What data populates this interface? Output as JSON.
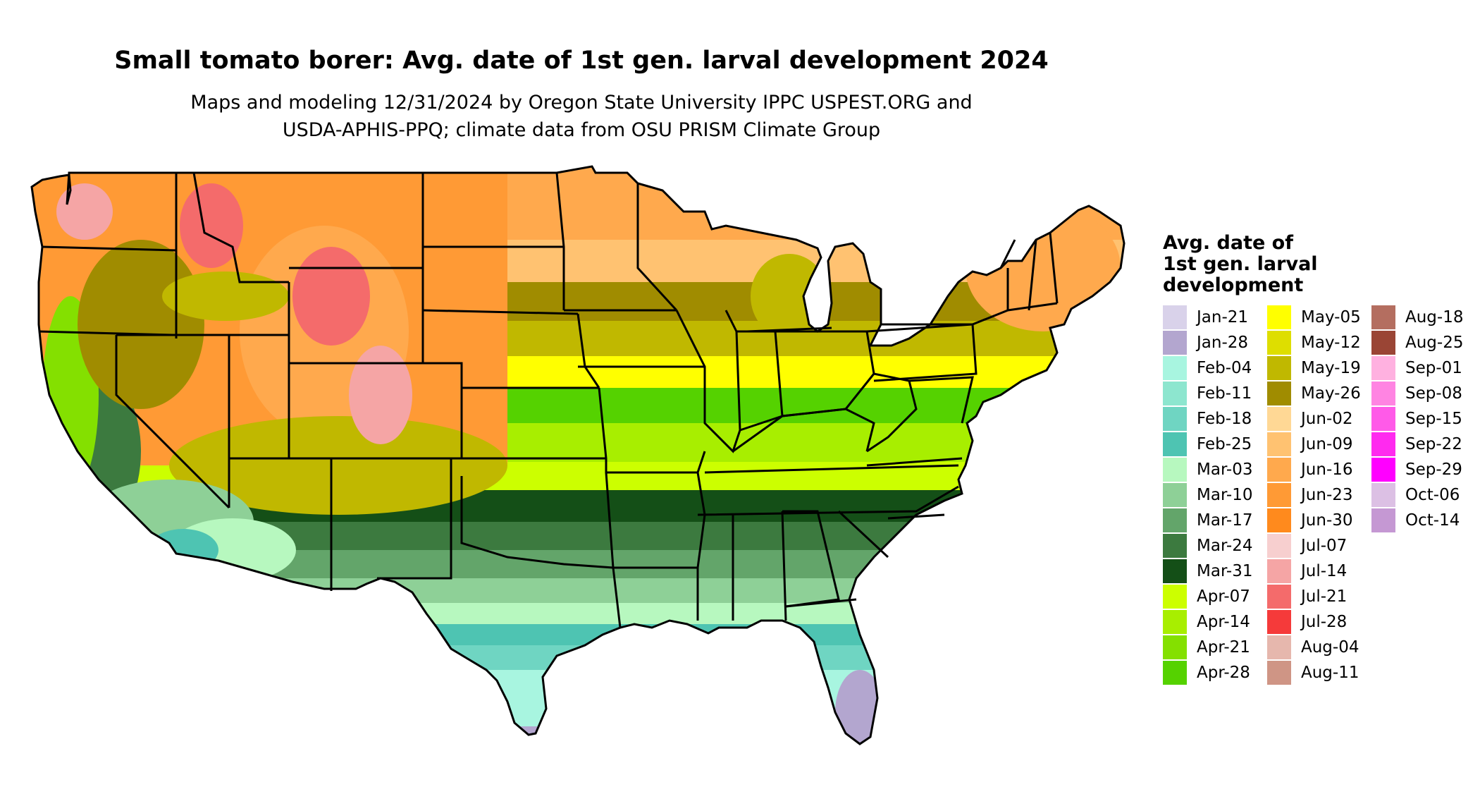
{
  "title": "Small tomato borer: Avg. date of 1st gen. larval development 2024",
  "subtitle": [
    "Maps and modeling 12/31/2024 by Oregon State University IPPC USPEST.ORG and",
    "USDA-APHIS-PPQ; climate data from OSU PRISM Climate Group"
  ],
  "map": {
    "region": "Contiguous United States",
    "borders": "state boundaries",
    "border_color": "#000000",
    "background": "#ffffff"
  },
  "legend": {
    "title_lines": [
      "Avg. date of",
      "1st gen. larval",
      "development"
    ],
    "items": [
      {
        "label": "Jan-21",
        "color": "#d9d2ea"
      },
      {
        "label": "Jan-28",
        "color": "#b3a6cf"
      },
      {
        "label": "Feb-04",
        "color": "#a8f5e0"
      },
      {
        "label": "Feb-11",
        "color": "#8de6cf"
      },
      {
        "label": "Feb-18",
        "color": "#6fd5c2"
      },
      {
        "label": "Feb-25",
        "color": "#4ec4b2"
      },
      {
        "label": "Mar-03",
        "color": "#b7f8bf"
      },
      {
        "label": "Mar-10",
        "color": "#8ed097"
      },
      {
        "label": "Mar-17",
        "color": "#63a56a"
      },
      {
        "label": "Mar-24",
        "color": "#3c7a3f"
      },
      {
        "label": "Mar-31",
        "color": "#144f17"
      },
      {
        "label": "Apr-07",
        "color": "#ccff00"
      },
      {
        "label": "Apr-14",
        "color": "#a8ee00"
      },
      {
        "label": "Apr-21",
        "color": "#84e000"
      },
      {
        "label": "Apr-28",
        "color": "#55d200"
      },
      {
        "label": "May-05",
        "color": "#ffff00"
      },
      {
        "label": "May-12",
        "color": "#dede00"
      },
      {
        "label": "May-19",
        "color": "#c0b800"
      },
      {
        "label": "May-26",
        "color": "#a08c00"
      },
      {
        "label": "Jun-02",
        "color": "#ffd895"
      },
      {
        "label": "Jun-09",
        "color": "#ffc271"
      },
      {
        "label": "Jun-16",
        "color": "#ffa94d"
      },
      {
        "label": "Jun-23",
        "color": "#ff9a35"
      },
      {
        "label": "Jun-30",
        "color": "#ff8a1d"
      },
      {
        "label": "Jul-07",
        "color": "#f7cfcf"
      },
      {
        "label": "Jul-14",
        "color": "#f5a5a5"
      },
      {
        "label": "Jul-21",
        "color": "#f46b6b"
      },
      {
        "label": "Jul-28",
        "color": "#f53a3a"
      },
      {
        "label": "Aug-04",
        "color": "#e6b7ad"
      },
      {
        "label": "Aug-11",
        "color": "#cf9585"
      },
      {
        "label": "Aug-18",
        "color": "#b46e60"
      },
      {
        "label": "Aug-25",
        "color": "#9a4535"
      },
      {
        "label": "Sep-01",
        "color": "#ffb1e0"
      },
      {
        "label": "Sep-08",
        "color": "#ff84e2"
      },
      {
        "label": "Sep-15",
        "color": "#ff5ae8"
      },
      {
        "label": "Sep-22",
        "color": "#ff2aef"
      },
      {
        "label": "Sep-29",
        "color": "#ff00ff"
      },
      {
        "label": "Oct-06",
        "color": "#dcc0e4"
      },
      {
        "label": "Oct-14",
        "color": "#c598d3"
      }
    ]
  }
}
